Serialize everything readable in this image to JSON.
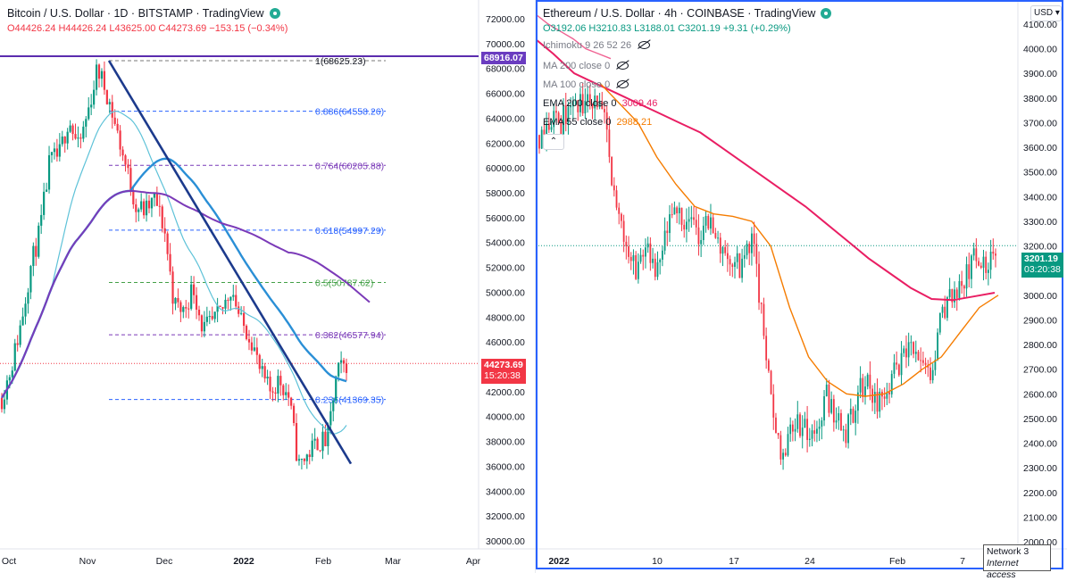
{
  "left_chart": {
    "title": "Bitcoin / U.S. Dollar · 1D · BITSTAMP · TradingView",
    "ohlc": "O44426.24 H44426.24 L43625.00 C44273.69 −153.15 (−0.34%)",
    "price_axis": [
      "72000.00",
      "70000.00",
      "68000.00",
      "66000.00",
      "64000.00",
      "62000.00",
      "60000.00",
      "58000.00",
      "56000.00",
      "54000.00",
      "52000.00",
      "50000.00",
      "48000.00",
      "46000.00",
      "44000.00",
      "42000.00",
      "40000.00",
      "38000.00",
      "36000.00",
      "34000.00",
      "32000.00",
      "30000.00"
    ],
    "time_axis": [
      "Oct",
      "Nov",
      "Dec",
      "2022",
      "Feb",
      "Mar",
      "Apr"
    ],
    "last_price": "44273.69",
    "countdown": "15:20:38",
    "marker_price": "68916.07",
    "fib_levels": [
      {
        "label": "1(68625.23)",
        "price": 68625.23
      },
      {
        "label": "0.886(64558.26)",
        "price": 64558.26
      },
      {
        "label": "0.764(60205.88)",
        "price": 60205.88
      },
      {
        "label": "0.618(54997.29)",
        "price": 54997.29
      },
      {
        "label": "0.5(50787.62)",
        "price": 50787.62
      },
      {
        "label": "0.382(46577.94)",
        "price": 46577.94
      },
      {
        "label": "0.236(41369.35)",
        "price": 41369.35
      }
    ]
  },
  "right_chart": {
    "title": "Ethereum / U.S. Dollar · 4h · COINBASE · TradingView",
    "ohlc": "O3192.06 H3210.83 L3188.01 C3201.19 +9.31 (+0.29%)",
    "indicators": [
      {
        "label": "Ichimoku 9 26 52 26",
        "value": ""
      },
      {
        "label": "MA 200 close 0",
        "value": ""
      },
      {
        "label": "MA 100 close 0",
        "value": ""
      },
      {
        "label": "EMA 200 close 0",
        "value": "3009.46"
      },
      {
        "label": "EMA 55 close 0",
        "value": "2988.21"
      }
    ],
    "price_axis": [
      "4100.00",
      "4000.00",
      "3900.00",
      "3800.00",
      "3700.00",
      "3600.00",
      "3500.00",
      "3400.00",
      "3300.00",
      "3200.00",
      "3100.00",
      "3000.00",
      "2900.00",
      "2800.00",
      "2700.00",
      "2600.00",
      "2500.00",
      "2400.00",
      "2300.00",
      "2200.00",
      "2100.00",
      "2000.00"
    ],
    "time_axis": [
      "2022",
      "10",
      "17",
      "24",
      "Feb",
      "7"
    ],
    "last_price": "3201.19",
    "countdown": "03:20:38",
    "currency": "USD",
    "network_label": "Network 3",
    "network_status": "Internet access"
  },
  "chart_data": [
    {
      "type": "candlestick",
      "title": "Bitcoin / U.S. Dollar · 1D · BITSTAMP",
      "ylim": [
        29000,
        73000
      ],
      "x": [
        "Oct",
        "Nov",
        "Dec",
        "2022",
        "Feb",
        "Mar",
        "Apr"
      ],
      "close_path": [
        [
          "Oct",
          43500
        ],
        [
          "Oct",
          47000
        ],
        [
          "Oct",
          55000
        ],
        [
          "Oct",
          61000
        ],
        [
          "Nov",
          62000
        ],
        [
          "Nov",
          65000
        ],
        [
          "Nov",
          60000
        ],
        [
          "Dec",
          57000
        ],
        [
          "Dec",
          49000
        ],
        [
          "Dec",
          47500
        ],
        [
          "2022",
          46500
        ],
        [
          "2022",
          42500
        ],
        [
          "2022",
          36000
        ],
        [
          "Feb",
          37000
        ],
        [
          "Feb",
          44273.69
        ]
      ],
      "colors": {
        "up": "#089981",
        "down": "#f23645",
        "trendline": "#1c3a8c",
        "ma_fast": "#2a8fd6",
        "ma_slow": "#7b3ab8",
        "ma_thin": "#5ec2d8"
      }
    },
    {
      "type": "candlestick",
      "title": "Ethereum / U.S. Dollar · 4h · COINBASE",
      "ylim": [
        1980,
        4150
      ],
      "x": [
        "2022",
        "10",
        "17",
        "24",
        "Feb",
        "7"
      ],
      "close_path": [
        [
          "2022",
          3700
        ],
        [
          "2022",
          3750
        ],
        [
          "10",
          3100
        ],
        [
          "10",
          3250
        ],
        [
          "17",
          3300
        ],
        [
          "17",
          3150
        ],
        [
          "24",
          2400
        ],
        [
          "24",
          2500
        ],
        [
          "Feb",
          2700
        ],
        [
          "Feb",
          2950
        ],
        [
          "7",
          3100
        ],
        [
          "7",
          3201.19
        ]
      ],
      "colors": {
        "up": "#089981",
        "down": "#f23645",
        "ema200": "#e91e63",
        "ema55": "#f57c00"
      }
    }
  ]
}
